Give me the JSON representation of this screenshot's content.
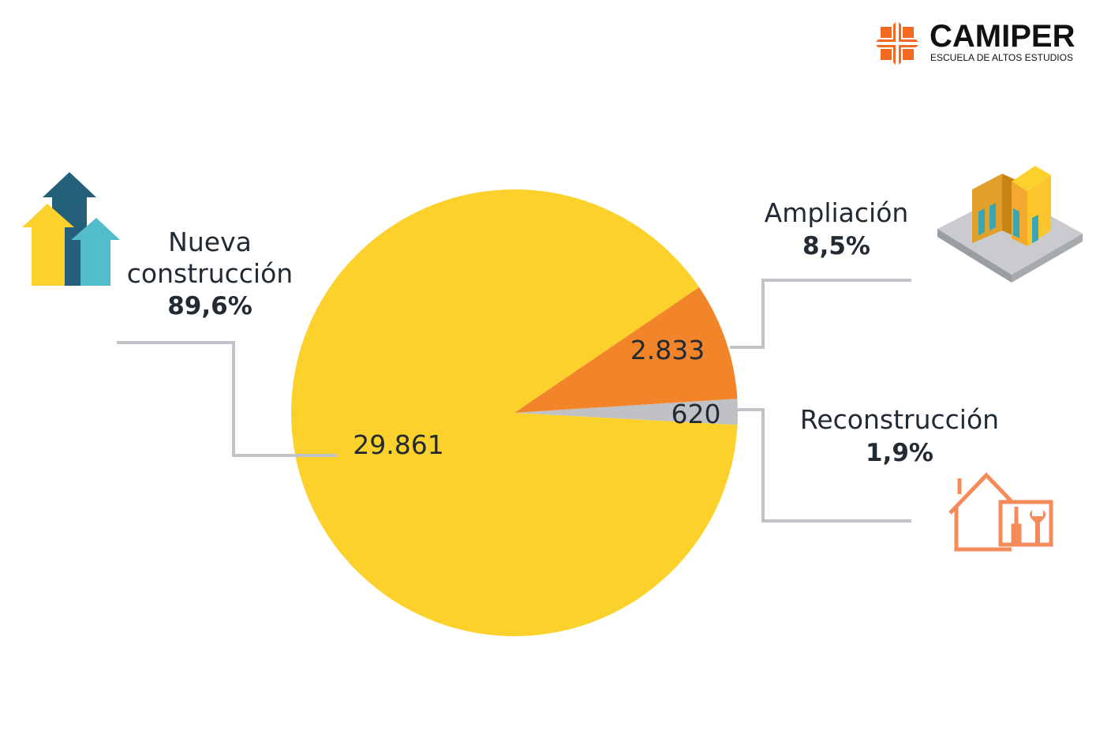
{
  "brand": {
    "name": "CAMIPER",
    "tagline": "ESCUELA DE ALTOS ESTUDIOS",
    "accent": "#f26a21"
  },
  "chart_data": {
    "type": "pie",
    "title": "",
    "slices": [
      {
        "name": "Nueva construcción",
        "value": 29861,
        "value_label": "29.861",
        "percent_label": "89,6%",
        "color": "#fcd12c",
        "icon": "rising-arrows-icon"
      },
      {
        "name": "Ampliación",
        "value": 2833,
        "value_label": "2.833",
        "percent_label": "8,5%",
        "color": "#f2852a",
        "icon": "building-extension-icon"
      },
      {
        "name": "Reconstrucción",
        "value": 620,
        "value_label": "620",
        "percent_label": "1,9%",
        "color": "#bfc1c4",
        "icon": "house-tools-icon"
      }
    ],
    "label_line_color": "#c0c3c7"
  }
}
